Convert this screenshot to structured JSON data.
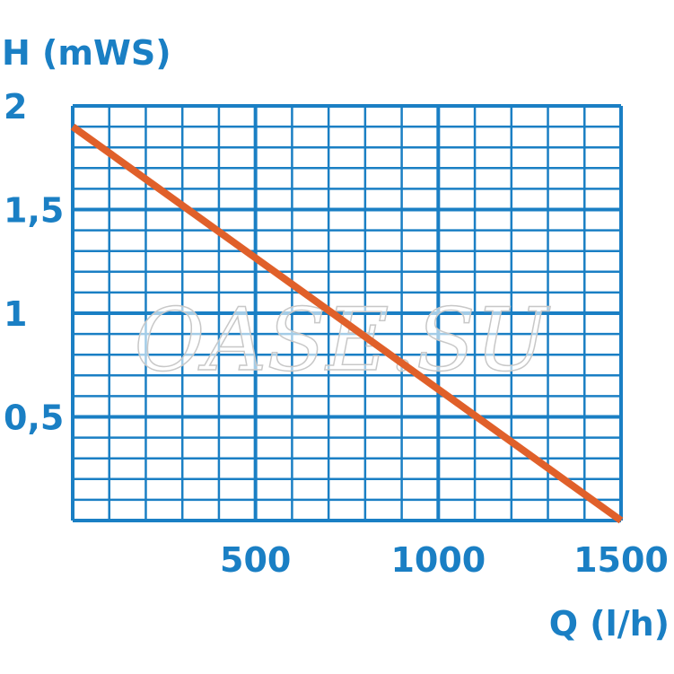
{
  "chart_data": {
    "type": "line",
    "ylabel": "H (mWS)",
    "xlabel": "Q (l/h)",
    "xlim": [
      0,
      1500
    ],
    "ylim": [
      0,
      2
    ],
    "x_ticks": [
      500,
      1000,
      1500
    ],
    "x_tick_labels": [
      "500",
      "1000",
      "1500"
    ],
    "y_ticks": [
      0.5,
      1,
      1.5,
      2
    ],
    "y_tick_labels": [
      "0,5",
      "1",
      "1,5",
      "2"
    ],
    "grid": true,
    "x_minor_step": 100,
    "y_minor_step": 0.1,
    "series": [
      {
        "x": [
          0,
          1500
        ],
        "y": [
          1.9,
          0
        ]
      }
    ],
    "colors": {
      "grid": "#1a7fc4",
      "line": "#e0602a",
      "labels": "#1a7fc4"
    },
    "watermark": "OASE.SU"
  }
}
